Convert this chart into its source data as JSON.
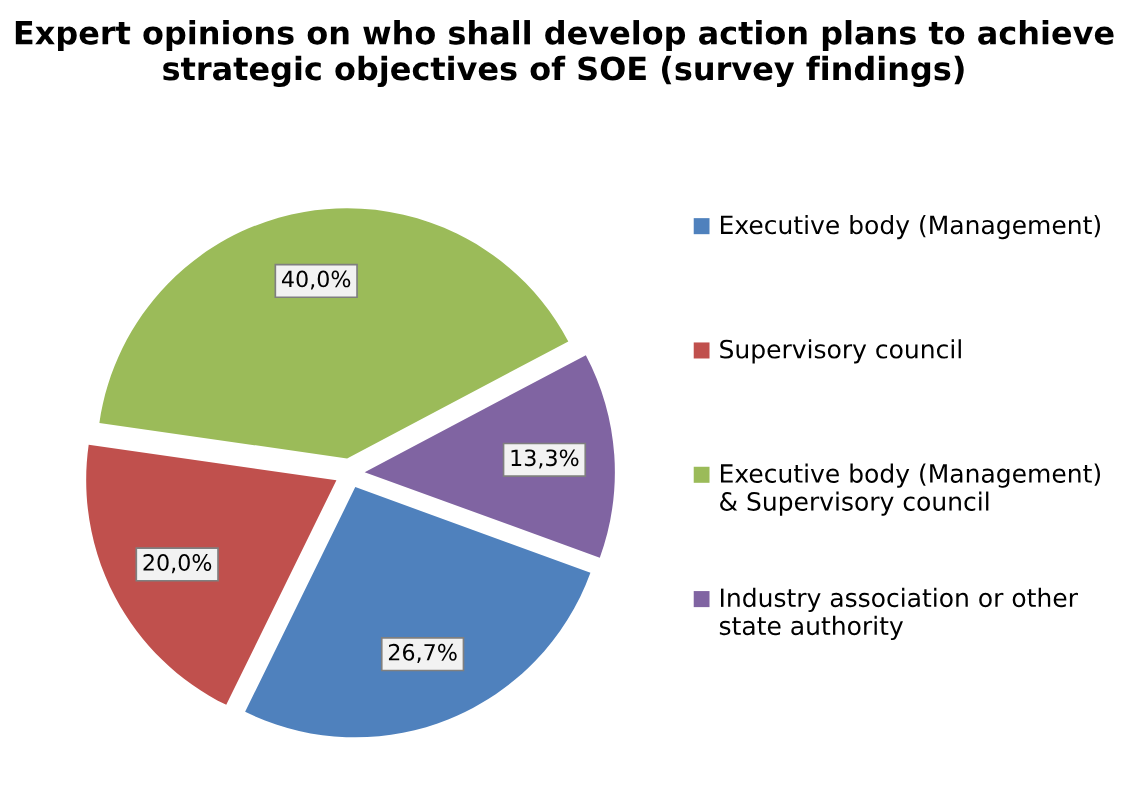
{
  "chart_data": {
    "type": "pie",
    "title": "Expert opinions on who shall develop action plans to achieve strategic objectives of SOE (survey findings)",
    "categories": [
      "Executive body (Management)",
      "Supervisory council",
      "Executive body (Management) & Supervisory council",
      "Industry association or other state authority"
    ],
    "values": [
      26.7,
      20.0,
      40.0,
      13.3
    ],
    "value_labels": [
      "26,7%",
      "20,0%",
      "40,0%",
      "13,3%"
    ],
    "colors": [
      "#4f81bd",
      "#c0504d",
      "#9bbb59",
      "#8064a2"
    ],
    "legend": "right"
  }
}
